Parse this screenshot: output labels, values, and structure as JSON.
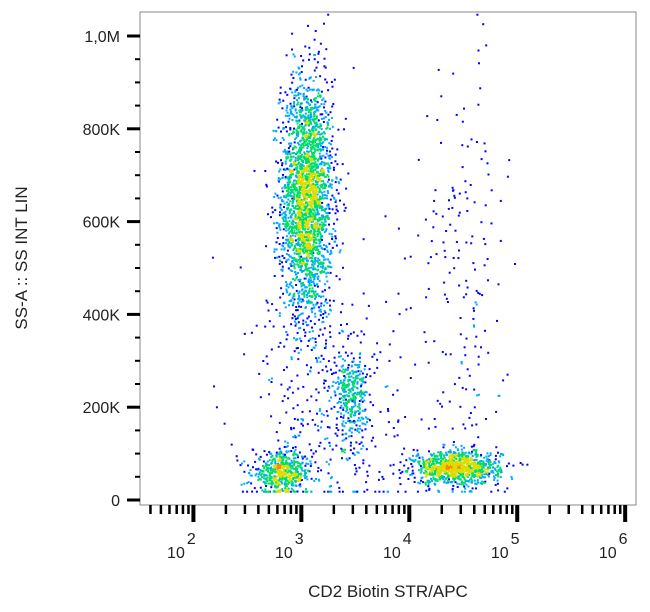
{
  "chart_data": {
    "type": "scatter",
    "subtype": "flow-cytometry density dot plot",
    "xlabel": "CD2 Biotin STR/APC",
    "ylabel": "SS-A :: SS INT LIN",
    "x_scale": "log",
    "xlim": [
      32,
      1260000
    ],
    "ylim": [
      0,
      1050000
    ],
    "x_ticks": [
      {
        "base": "10",
        "exp": "2",
        "value": 100
      },
      {
        "base": "10",
        "exp": "3",
        "value": 1000
      },
      {
        "base": "10",
        "exp": "4",
        "value": 10000
      },
      {
        "base": "10",
        "exp": "5",
        "value": 100000
      },
      {
        "base": "10",
        "exp": "6",
        "value": 1000000
      }
    ],
    "y_ticks": [
      {
        "label": "0",
        "value": 0
      },
      {
        "label": "200K",
        "value": 200000
      },
      {
        "label": "400K",
        "value": 400000
      },
      {
        "label": "600K",
        "value": 600000
      },
      {
        "label": "800K",
        "value": 800000
      },
      {
        "label": "1,0M",
        "value": 1000000
      }
    ],
    "grid": false,
    "density_colors": [
      "#0000ff",
      "#00aaff",
      "#00dd66",
      "#dddd00",
      "#ff8800",
      "#ff0000"
    ],
    "populations": [
      {
        "x_center": 1100,
        "x_spread_log10": 0.12,
        "y_center": 650000,
        "y_spread": 130000,
        "events": 2600
      },
      {
        "x_center": 650,
        "x_spread_log10": 0.14,
        "y_center": 60000,
        "y_spread": 22000,
        "events": 550
      },
      {
        "x_center": 2800,
        "x_spread_log10": 0.08,
        "y_center": 230000,
        "y_spread": 45000,
        "events": 300
      },
      {
        "x_center": 27000,
        "x_spread_log10": 0.2,
        "y_center": 72000,
        "y_spread": 18000,
        "events": 1000
      },
      {
        "x_center": 30000,
        "x_spread_log10": 0.2,
        "y_center": 450000,
        "y_spread": 250000,
        "events": 180
      },
      {
        "x_center": 2000,
        "x_spread_log10": 0.35,
        "y_center": 200000,
        "y_spread": 150000,
        "events": 350
      }
    ]
  }
}
